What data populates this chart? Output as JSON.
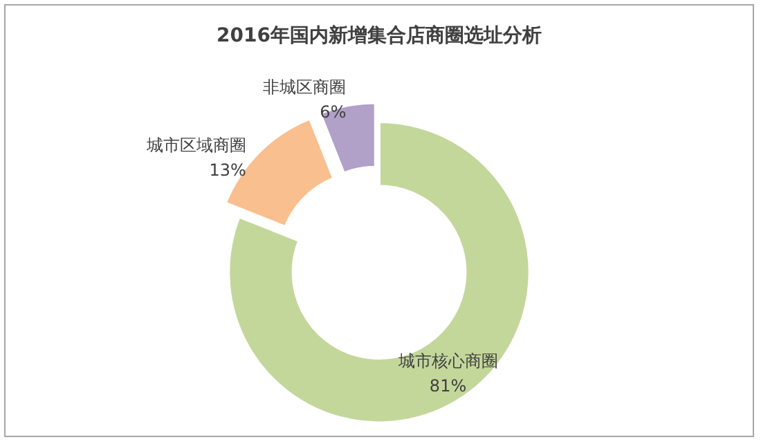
{
  "chart_data": {
    "type": "donut",
    "title": "2016年国内新增集合店商圈选址分析",
    "categories": [
      "城市核心商圈",
      "城市区域商圈",
      "非城区商圈"
    ],
    "values": [
      81,
      13,
      6
    ],
    "value_labels": [
      "81%",
      "13%",
      "6%"
    ],
    "colors": [
      "#c4d79b",
      "#fabf8f",
      "#b1a0c7"
    ],
    "legend": false
  }
}
